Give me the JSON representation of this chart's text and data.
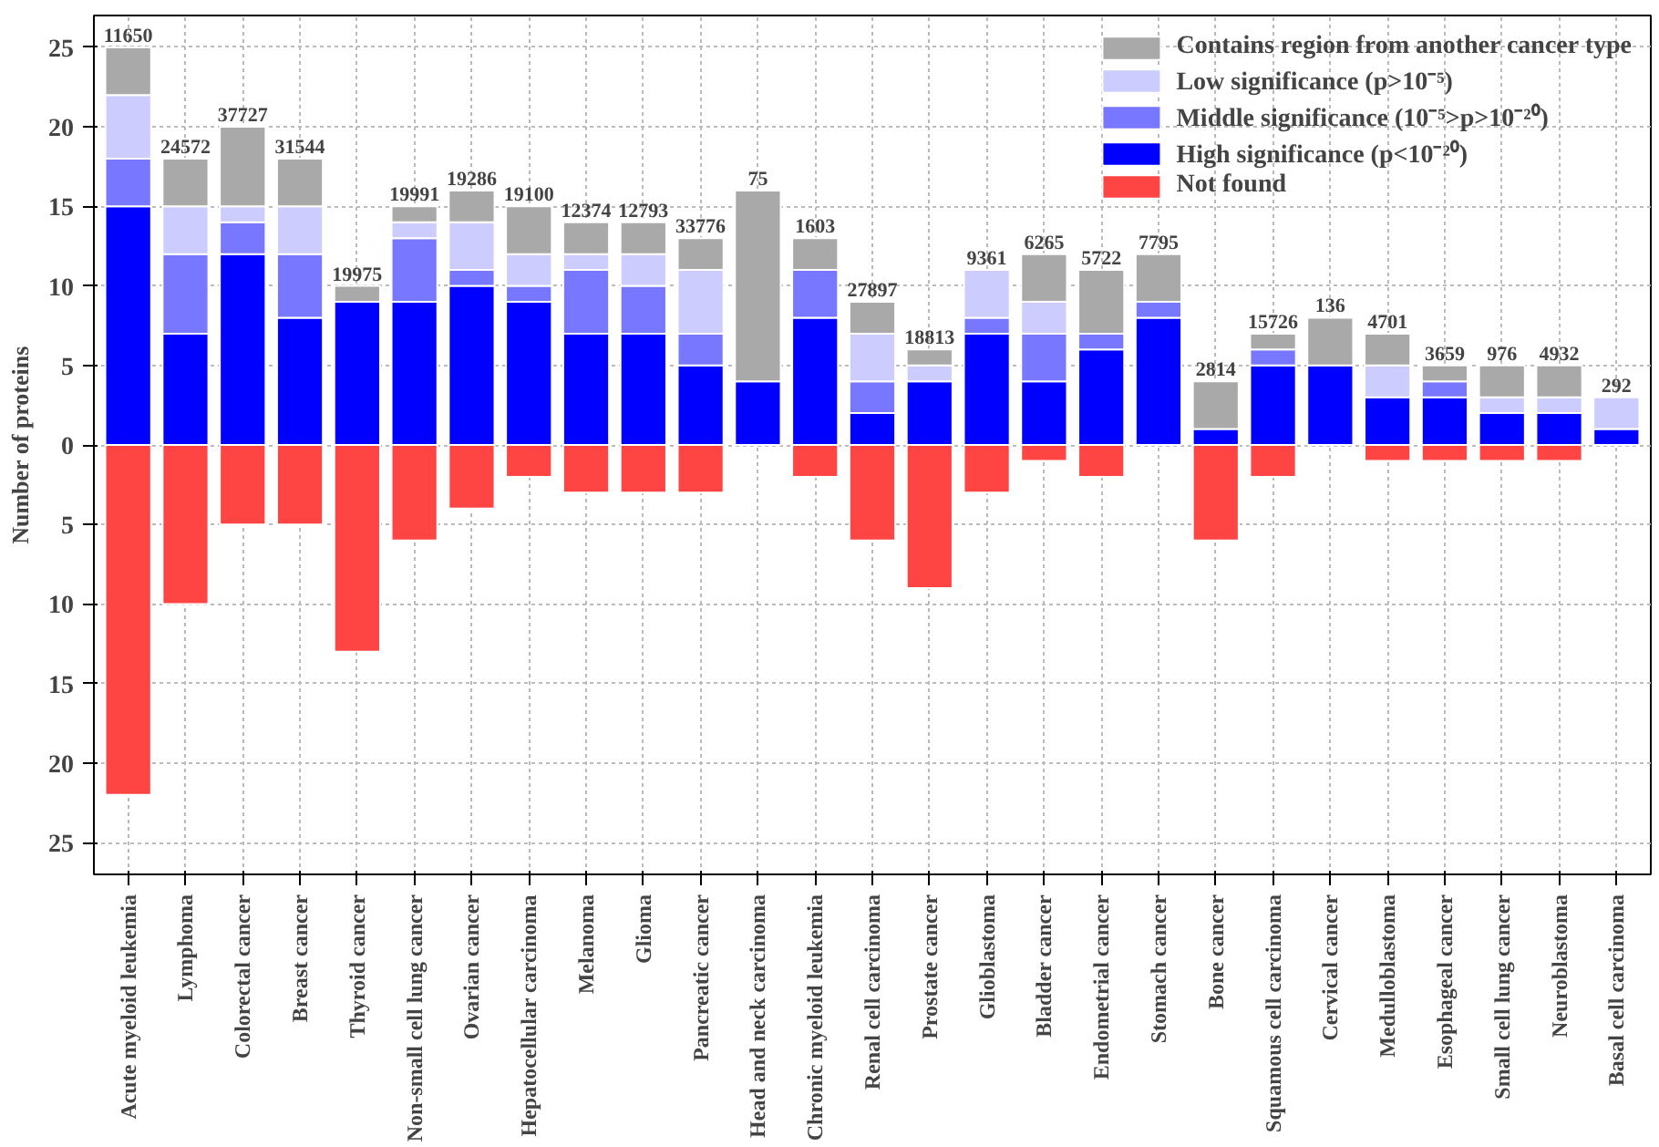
{
  "chart_data": {
    "type": "bar",
    "stacked": true,
    "ylabel": "Number of proteins",
    "categories": [
      "Acute myeloid leukemia",
      "Lymphoma",
      "Colorectal cancer",
      "Breast cancer",
      "Thyroid cancer",
      "Non-small cell lung cancer",
      "Ovarian cancer",
      "Hepatocellular carcinoma",
      "Melanoma",
      "Glioma",
      "Pancreatic cancer",
      "Head and neck carcinoma",
      "Chronic myeloid leukemia",
      "Renal cell carcinoma",
      "Prostate cancer",
      "Glioblastoma",
      "Bladder cancer",
      "Endometrial cancer",
      "Stomach cancer",
      "Bone cancer",
      "Squamous cell carcinoma",
      "Cervical cancer",
      "Medulloblastoma",
      "Esophageal cancer",
      "Small cell lung cancer",
      "Neuroblastoma",
      "Basal cell carcinoma"
    ],
    "series": [
      {
        "name": "High significance (p<10⁻²⁰)",
        "color": "#0000ff",
        "values": [
          15,
          7,
          12,
          8,
          9,
          9,
          10,
          9,
          7,
          7,
          5,
          4,
          8,
          2,
          4,
          7,
          4,
          6,
          8,
          1,
          5,
          5,
          3,
          3,
          2,
          2,
          1
        ]
      },
      {
        "name": "Middle significance (10⁻⁵>p>10⁻²⁰)",
        "color": "#7777ff",
        "values": [
          3,
          5,
          2,
          4,
          0,
          4,
          1,
          1,
          4,
          3,
          2,
          0,
          3,
          2,
          0,
          1,
          3,
          1,
          1,
          0,
          1,
          0,
          0,
          1,
          0,
          0,
          0
        ]
      },
      {
        "name": "Low significance (p>10⁻⁵)",
        "color": "#ccccff",
        "values": [
          4,
          3,
          1,
          3,
          0,
          1,
          3,
          2,
          1,
          2,
          4,
          0,
          0,
          3,
          1,
          3,
          2,
          0,
          0,
          0,
          0,
          0,
          2,
          0,
          1,
          1,
          2
        ]
      },
      {
        "name": "Contains region from another cancer type",
        "color": "#a9a9a9",
        "values": [
          3,
          3,
          5,
          3,
          1,
          1,
          2,
          3,
          2,
          2,
          2,
          12,
          2,
          2,
          1,
          0,
          3,
          4,
          3,
          3,
          1,
          3,
          2,
          1,
          2,
          2,
          0
        ]
      },
      {
        "name": "Not found",
        "color": "#ff4444",
        "values": [
          -22,
          -10,
          -5,
          -5,
          -13,
          -6,
          -4,
          -2,
          -3,
          -3,
          -3,
          0,
          -2,
          -6,
          -9,
          -3,
          -1,
          -2,
          0,
          -6,
          -2,
          0,
          -1,
          -1,
          -1,
          -1,
          0
        ]
      }
    ],
    "annotations": [
      {
        "text": "11650",
        "x": "Acute myeloid leukemia",
        "y": 25
      },
      {
        "text": "24572",
        "x": "Lymphoma",
        "y": 18
      },
      {
        "text": "37727",
        "x": "Colorectal cancer",
        "y": 20
      },
      {
        "text": "31544",
        "x": "Breast cancer",
        "y": 18
      },
      {
        "text": "19975",
        "x": "Thyroid cancer",
        "y": 10
      },
      {
        "text": "19991",
        "x": "Non-small cell lung cancer",
        "y": 15
      },
      {
        "text": "19286",
        "x": "Ovarian cancer",
        "y": 16
      },
      {
        "text": "19100",
        "x": "Hepatocellular carcinoma",
        "y": 15
      },
      {
        "text": "12374",
        "x": "Melanoma",
        "y": 14
      },
      {
        "text": "12793",
        "x": "Glioma",
        "y": 14
      },
      {
        "text": "33776",
        "x": "Pancreatic cancer",
        "y": 13
      },
      {
        "text": "75",
        "x": "Head and neck carcinoma",
        "y": 16
      },
      {
        "text": "1603",
        "x": "Chronic myeloid leukemia",
        "y": 13
      },
      {
        "text": "27897",
        "x": "Renal cell carcinoma",
        "y": 9
      },
      {
        "text": "18813",
        "x": "Prostate cancer",
        "y": 6
      },
      {
        "text": "9361",
        "x": "Glioblastoma",
        "y": 11
      },
      {
        "text": "6265",
        "x": "Bladder cancer",
        "y": 12
      },
      {
        "text": "5722",
        "x": "Endometrial cancer",
        "y": 11
      },
      {
        "text": "7795",
        "x": "Stomach cancer",
        "y": 12
      },
      {
        "text": "2814",
        "x": "Bone cancer",
        "y": 4
      },
      {
        "text": "15726",
        "x": "Squamous cell carcinoma",
        "y": 7
      },
      {
        "text": "136",
        "x": "Cervical cancer",
        "y": 8
      },
      {
        "text": "4701",
        "x": "Medulloblastoma",
        "y": 7
      },
      {
        "text": "3659",
        "x": "Esophageal cancer",
        "y": 5
      },
      {
        "text": "976",
        "x": "Small cell lung cancer",
        "y": 5
      },
      {
        "text": "4932",
        "x": "Neuroblastoma",
        "y": 5
      },
      {
        "text": "292",
        "x": "Basal cell carcinoma",
        "y": 3
      }
    ],
    "ylim": [
      -27,
      27
    ],
    "yticks": [
      {
        "value": -25,
        "label": "25"
      },
      {
        "value": -20,
        "label": "20"
      },
      {
        "value": -15,
        "label": "15"
      },
      {
        "value": -10,
        "label": "10"
      },
      {
        "value": -5,
        "label": "5"
      },
      0,
      5,
      10,
      15,
      20,
      25
    ],
    "grid": true,
    "legend": "top right"
  }
}
